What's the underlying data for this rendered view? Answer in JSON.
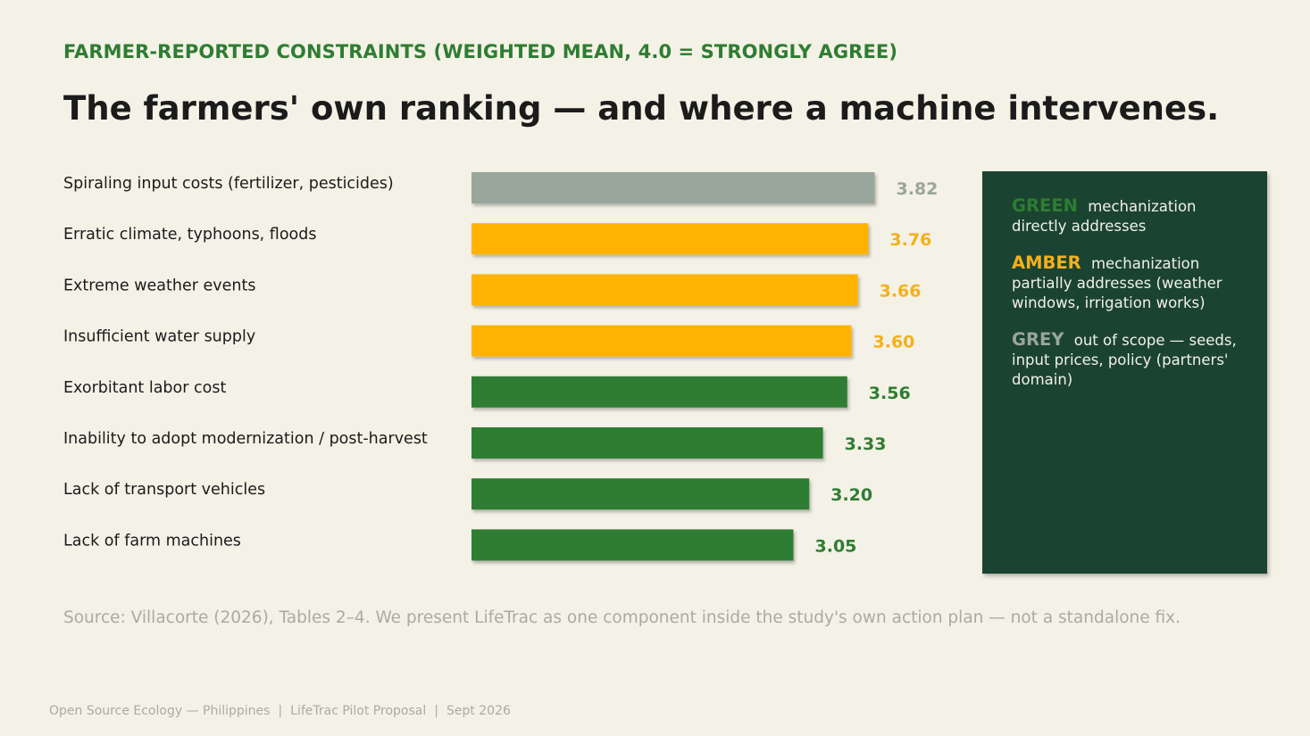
{
  "eyebrow": "FARMER-REPORTED CONSTRAINTS (WEIGHTED MEAN, 4.0 = STRONGLY AGREE)",
  "headline": "The farmers' own ranking — and where a machine intervenes.",
  "colors": {
    "background": "#f4f1e6",
    "green": "#2e7d32",
    "amber": "#ffb300",
    "grey": "#9aa59b",
    "panel": "#1b4332",
    "amber_value": "#f4b01a"
  },
  "chart_data": {
    "type": "bar",
    "orientation": "horizontal",
    "xlim": [
      0,
      4.0
    ],
    "categories": [
      "Spiraling input costs (fertilizer, pesticides)",
      "Erratic climate, typhoons, floods",
      "Extreme weather events",
      "Insufficient water supply",
      "Exorbitant labor cost",
      "Inability to adopt modernization / post-harvest",
      "Lack of transport vehicles",
      "Lack of farm machines"
    ],
    "values": [
      3.82,
      3.76,
      3.66,
      3.6,
      3.56,
      3.33,
      3.2,
      3.05
    ],
    "value_labels": [
      "3.82",
      "3.76",
      "3.66",
      "3.60",
      "3.56",
      "3.33",
      "3.20",
      "3.05"
    ],
    "groups": [
      "grey",
      "amber",
      "amber",
      "amber",
      "green",
      "green",
      "green",
      "green"
    ]
  },
  "legend": [
    {
      "key": "GREEN",
      "color": "#2e7d32",
      "text": "mechanization directly addresses"
    },
    {
      "key": "AMBER",
      "color": "#f4b01a",
      "text": "mechanization partially addresses (weather windows, irrigation works)"
    },
    {
      "key": "GREY",
      "color": "#9aa59b",
      "text": "out of scope — seeds, input prices, policy (partners' domain)"
    }
  ],
  "source": "Source: Villacorte (2026), Tables 2–4. We present LifeTrac as one component inside the study's own action plan — not a standalone fix.",
  "footer": {
    "org": "Open Source Ecology — Philippines",
    "project": "LifeTrac Pilot Proposal",
    "date": "Sept 2026",
    "separator": "|"
  }
}
